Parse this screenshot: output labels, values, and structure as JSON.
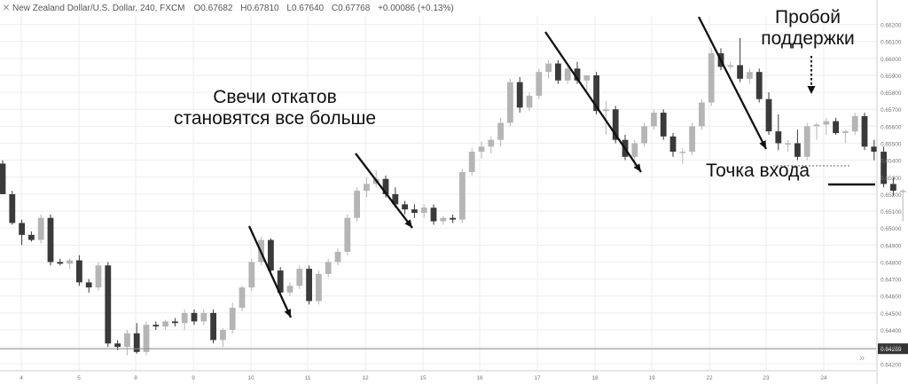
{
  "header": {
    "symbol": "New Zealand Dollar/U.S. Dollar, 240, FXCM",
    "open": "O0.67682",
    "high": "H0.67810",
    "low": "L0.67640",
    "close": "C0.67768",
    "change": "+0.00086 (+0.13%)"
  },
  "annotations": {
    "pullback_label_line1": "Свечи откатов",
    "pullback_label_line2": "становятся все больше",
    "breakout_label_line1": "Пробой",
    "breakout_label_line2": "поддержки",
    "entry_label": "Точка входа"
  },
  "colors": {
    "bull": "#b5b5b5",
    "bear": "#3a3a3a",
    "grid": "#eeeeee",
    "price_line": "#8a8a8a"
  },
  "chart_data": {
    "type": "candlestick",
    "y_ticks": [
      "0.66200",
      "0.66100",
      "0.66000",
      "0.65900",
      "0.65800",
      "0.65700",
      "0.65600",
      "0.65500",
      "0.65400",
      "0.65300",
      "0.65200",
      "0.65100",
      "0.65000",
      "0.64900",
      "0.64800",
      "0.64700",
      "0.64600",
      "0.64500",
      "0.64400",
      "0.64300",
      "0.64200"
    ],
    "ylim": [
      0.6417,
      0.6625
    ],
    "x_ticks": [
      "4",
      "5",
      "8",
      "9",
      "10",
      "11",
      "12",
      "15",
      "16",
      "17",
      "18",
      "19",
      "22",
      "23",
      "24"
    ],
    "current_price_label": "0.64289",
    "current_price": 0.64289,
    "support_level": 0.65367,
    "entry_level": 0.65257,
    "candles": [
      [
        0.6538,
        0.654,
        0.652,
        0.652
      ],
      [
        0.652,
        0.6522,
        0.6502,
        0.6503
      ],
      [
        0.6503,
        0.6505,
        0.649,
        0.6496
      ],
      [
        0.6496,
        0.6498,
        0.6492,
        0.6493
      ],
      [
        0.6493,
        0.6508,
        0.6491,
        0.6506
      ],
      [
        0.6506,
        0.6508,
        0.6478,
        0.648
      ],
      [
        0.648,
        0.6482,
        0.6478,
        0.6479
      ],
      [
        0.6479,
        0.6482,
        0.6476,
        0.6481
      ],
      [
        0.6481,
        0.6484,
        0.6466,
        0.6468
      ],
      [
        0.6468,
        0.647,
        0.6462,
        0.6465
      ],
      [
        0.6465,
        0.648,
        0.6463,
        0.6478
      ],
      [
        0.6478,
        0.648,
        0.643,
        0.6432
      ],
      [
        0.6432,
        0.6434,
        0.6428,
        0.643
      ],
      [
        0.643,
        0.644,
        0.6425,
        0.6438
      ],
      [
        0.6438,
        0.6444,
        0.6426,
        0.6427
      ],
      [
        0.6427,
        0.6445,
        0.6425,
        0.6443
      ],
      [
        0.6443,
        0.6445,
        0.644,
        0.6442
      ],
      [
        0.6442,
        0.6446,
        0.644,
        0.6445
      ],
      [
        0.6445,
        0.6447,
        0.6442,
        0.6444
      ],
      [
        0.6444,
        0.6452,
        0.644,
        0.645
      ],
      [
        0.645,
        0.6452,
        0.6443,
        0.6445
      ],
      [
        0.6445,
        0.6452,
        0.6443,
        0.645
      ],
      [
        0.645,
        0.6452,
        0.6432,
        0.6434
      ],
      [
        0.6434,
        0.6441,
        0.643,
        0.644
      ],
      [
        0.644,
        0.6456,
        0.6438,
        0.6453
      ],
      [
        0.6453,
        0.6466,
        0.6451,
        0.6465
      ],
      [
        0.6465,
        0.6482,
        0.6463,
        0.648
      ],
      [
        0.648,
        0.6495,
        0.6478,
        0.6493
      ],
      [
        0.6493,
        0.6494,
        0.6473,
        0.6475
      ],
      [
        0.6475,
        0.6477,
        0.646,
        0.6462
      ],
      [
        0.6462,
        0.6468,
        0.646,
        0.6466
      ],
      [
        0.6466,
        0.6478,
        0.6464,
        0.6476
      ],
      [
        0.6476,
        0.6478,
        0.6455,
        0.6457
      ],
      [
        0.6457,
        0.6475,
        0.6455,
        0.6473
      ],
      [
        0.6473,
        0.6482,
        0.6471,
        0.648
      ],
      [
        0.648,
        0.6488,
        0.6478,
        0.6486
      ],
      [
        0.6486,
        0.6508,
        0.6484,
        0.6506
      ],
      [
        0.6506,
        0.6524,
        0.6504,
        0.6522
      ],
      [
        0.6522,
        0.653,
        0.6518,
        0.6526
      ],
      [
        0.6526,
        0.6534,
        0.6524,
        0.6529
      ],
      [
        0.6529,
        0.6531,
        0.6518,
        0.652
      ],
      [
        0.652,
        0.6524,
        0.6512,
        0.6514
      ],
      [
        0.6514,
        0.6516,
        0.6508,
        0.6511
      ],
      [
        0.6511,
        0.6514,
        0.6506,
        0.6509
      ],
      [
        0.6509,
        0.6514,
        0.6506,
        0.6512
      ],
      [
        0.6512,
        0.6514,
        0.6502,
        0.6504
      ],
      [
        0.6504,
        0.6507,
        0.6502,
        0.6506
      ],
      [
        0.6506,
        0.6508,
        0.6503,
        0.6505
      ],
      [
        0.6505,
        0.6535,
        0.6503,
        0.6533
      ],
      [
        0.6533,
        0.6547,
        0.6531,
        0.6545
      ],
      [
        0.6545,
        0.6551,
        0.6541,
        0.6548
      ],
      [
        0.6548,
        0.6554,
        0.6544,
        0.6552
      ],
      [
        0.6552,
        0.6565,
        0.6548,
        0.6562
      ],
      [
        0.6562,
        0.6588,
        0.656,
        0.6586
      ],
      [
        0.6586,
        0.6589,
        0.6568,
        0.6571
      ],
      [
        0.6571,
        0.658,
        0.6569,
        0.6578
      ],
      [
        0.6578,
        0.6594,
        0.6576,
        0.6592
      ],
      [
        0.6592,
        0.6599,
        0.6588,
        0.6597
      ],
      [
        0.6597,
        0.6599,
        0.6585,
        0.6587
      ],
      [
        0.6587,
        0.6596,
        0.6585,
        0.6594
      ],
      [
        0.6594,
        0.6598,
        0.6585,
        0.6587
      ],
      [
        0.6587,
        0.659,
        0.6581,
        0.659
      ],
      [
        0.659,
        0.6592,
        0.6567,
        0.6569
      ],
      [
        0.6569,
        0.6575,
        0.6555,
        0.657
      ],
      [
        0.657,
        0.6572,
        0.655,
        0.6552
      ],
      [
        0.6552,
        0.6555,
        0.654,
        0.6542
      ],
      [
        0.6542,
        0.6552,
        0.6535,
        0.655
      ],
      [
        0.655,
        0.6562,
        0.6548,
        0.656
      ],
      [
        0.656,
        0.657,
        0.6558,
        0.6568
      ],
      [
        0.6568,
        0.657,
        0.6552,
        0.6554
      ],
      [
        0.6554,
        0.6556,
        0.6542,
        0.6545
      ],
      [
        0.6545,
        0.6547,
        0.6538,
        0.6545
      ],
      [
        0.6545,
        0.6562,
        0.6543,
        0.656
      ],
      [
        0.656,
        0.6576,
        0.6558,
        0.6574
      ],
      [
        0.6574,
        0.6606,
        0.6572,
        0.6603
      ],
      [
        0.6603,
        0.6606,
        0.6593,
        0.6595
      ],
      [
        0.6595,
        0.6598,
        0.6594,
        0.6596
      ],
      [
        0.6596,
        0.6612,
        0.6586,
        0.6588
      ],
      [
        0.6588,
        0.6594,
        0.6585,
        0.6592
      ],
      [
        0.6592,
        0.6594,
        0.6574,
        0.6576
      ],
      [
        0.6576,
        0.658,
        0.6555,
        0.6557
      ],
      [
        0.6557,
        0.6567,
        0.6546,
        0.655
      ],
      [
        0.655,
        0.6552,
        0.6545,
        0.655
      ],
      [
        0.655,
        0.6558,
        0.654,
        0.6542
      ],
      [
        0.6542,
        0.6562,
        0.654,
        0.656
      ],
      [
        0.656,
        0.6562,
        0.6552,
        0.6561
      ],
      [
        0.6561,
        0.6565,
        0.6555,
        0.6563
      ],
      [
        0.6563,
        0.6565,
        0.6555,
        0.6556
      ],
      [
        0.6556,
        0.6558,
        0.655,
        0.6557
      ],
      [
        0.6557,
        0.6568,
        0.6555,
        0.6566
      ],
      [
        0.6566,
        0.6568,
        0.6546,
        0.6548
      ],
      [
        0.6548,
        0.6552,
        0.654,
        0.6545
      ],
      [
        0.6545,
        0.6548,
        0.6524,
        0.6526
      ],
      [
        0.6526,
        0.653,
        0.6519,
        0.6522
      ],
      [
        0.6522,
        0.6523,
        0.6504,
        0.6522
      ]
    ]
  }
}
